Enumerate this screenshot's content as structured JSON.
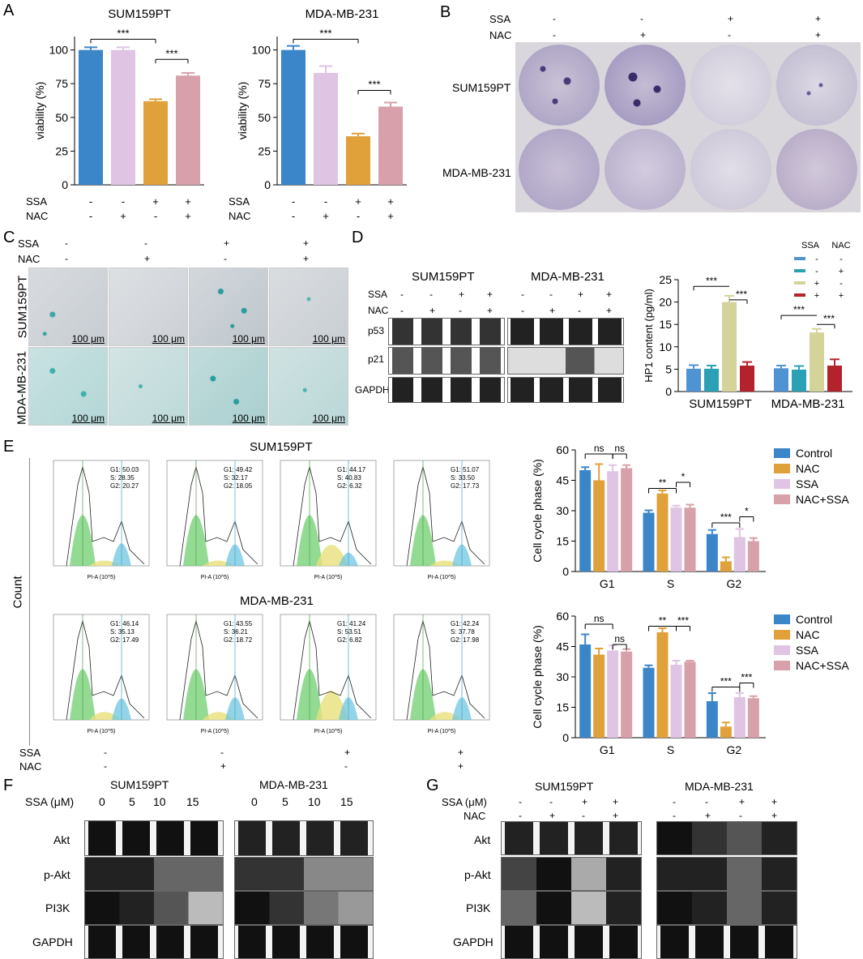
{
  "panels": {
    "A": "A",
    "B": "B",
    "C": "C",
    "D": "D",
    "E": "E",
    "F": "F",
    "G": "G"
  },
  "colors": {
    "control": "#3b86c8",
    "nac": "#e0a03a",
    "ssa": "#e0c4e4",
    "nac_ssa": "#d8a0aa",
    "d_blue": "#4f93d3",
    "d_teal": "#2aa1b5",
    "d_olive": "#d4d49a",
    "d_red": "#b4232c"
  },
  "panelA": {
    "sign_labels": {
      "ssa": "SSA",
      "nac": "NAC"
    },
    "ssa_signs": [
      "-",
      "-",
      "+",
      "+"
    ],
    "nac_signs": [
      "-",
      "+",
      "-",
      "+"
    ],
    "sig": "***"
  },
  "panelB": {
    "ssa_label": "SSA",
    "nac_label": "NAC",
    "ssa_signs": [
      "-",
      "-",
      "+",
      "+"
    ],
    "nac_signs": [
      "-",
      "+",
      "-",
      "+"
    ],
    "rows": [
      "SUM159PT",
      "MDA-MB-231"
    ]
  },
  "panelC": {
    "ssa_label": "SSA",
    "nac_label": "NAC",
    "ssa_signs": [
      "-",
      "-",
      "+",
      "+"
    ],
    "nac_signs": [
      "-",
      "+",
      "-",
      "+"
    ],
    "rows": [
      "SUM159PT",
      "MDA-MB-231"
    ],
    "scale": "100 μm"
  },
  "panelD": {
    "cell_lines": [
      "SUM159PT",
      "MDA-MB-231"
    ],
    "ssa_label": "SSA",
    "nac_label": "NAC",
    "ssa_signs": [
      "-",
      "-",
      "+",
      "+"
    ],
    "nac_signs": [
      "-",
      "+",
      "-",
      "+"
    ],
    "proteins": [
      "p53",
      "p21",
      "GAPDH"
    ],
    "legend_head": [
      "SSA",
      "NAC"
    ],
    "legend_rows": [
      [
        "-",
        "-"
      ],
      [
        "-",
        "+"
      ],
      [
        "+",
        "-"
      ],
      [
        "+",
        "+"
      ]
    ]
  },
  "panelE": {
    "titles": [
      "SUM159PT",
      "MDA-MB-231"
    ],
    "y_axis": "Count",
    "ssa_label": "SSA",
    "nac_label": "NAC",
    "ssa_signs": [
      "-",
      "-",
      "+",
      "+"
    ],
    "nac_signs": [
      "-",
      "+",
      "-",
      "+"
    ],
    "hist_stats": [
      [
        "G1: 50.03",
        "S: 28.35",
        "G2: 20.27"
      ],
      [
        "G1: 49.42",
        "S: 32.17",
        "G2: 18.05"
      ],
      [
        "G1: 44.17",
        "S: 40.83",
        "G2: 6.32"
      ],
      [
        "G1: 51.07",
        "S: 33.50",
        "G2: 17.73"
      ],
      [
        "G1: 46.14",
        "S: 35.13",
        "G2: 17.49"
      ],
      [
        "G1: 43.55",
        "S: 36.21",
        "G2: 18.72"
      ],
      [
        "G1: 41.24",
        "S: 53.51",
        "G2: 6.82"
      ],
      [
        "G1: 42.24",
        "S: 37.78",
        "G2: 17.98"
      ]
    ]
  },
  "panelF": {
    "cell_lines": [
      "SUM159PT",
      "MDA-MB-231"
    ],
    "dose_label": "SSA (μM)",
    "doses": [
      "0",
      "5",
      "10",
      "15"
    ],
    "proteins": [
      "Akt",
      "p-Akt",
      "PI3K",
      "GAPDH"
    ]
  },
  "panelG": {
    "cell_lines": [
      "SUM159PT",
      "MDA-MB-231"
    ],
    "ssa_label": "SSA (μM)",
    "nac_label": "NAC",
    "ssa_signs": [
      "-",
      "-",
      "+",
      "+"
    ],
    "nac_signs": [
      "-",
      "+",
      "-",
      "+"
    ],
    "proteins": [
      "Akt",
      "p-Akt",
      "PI3K",
      "GAPDH"
    ]
  },
  "chart_data": [
    {
      "id": "A-SUM159PT",
      "type": "bar",
      "title": "SUM159PT",
      "ylabel": "viability (%)",
      "ylim": [
        0,
        110
      ],
      "yticks": [
        0,
        25,
        50,
        75,
        100
      ],
      "values": [
        100,
        100,
        62,
        81
      ],
      "errors": [
        2,
        2,
        1.5,
        2
      ],
      "colors": [
        "#3b86c8",
        "#e0c4e4",
        "#e0a03a",
        "#d8a0aa"
      ]
    },
    {
      "id": "A-MDA-MB-231",
      "type": "bar",
      "title": "MDA-MB-231",
      "ylabel": "viability (%)",
      "ylim": [
        0,
        110
      ],
      "yticks": [
        0,
        25,
        50,
        75,
        100
      ],
      "values": [
        100,
        83,
        36,
        58
      ],
      "errors": [
        3,
        5,
        2,
        3
      ],
      "colors": [
        "#3b86c8",
        "#e0c4e4",
        "#e0a03a",
        "#d8a0aa"
      ]
    },
    {
      "id": "D-HP1",
      "type": "bar",
      "ylabel": "HP1 content (pg/ml)",
      "ylim": [
        0,
        25
      ],
      "yticks": [
        0,
        5,
        10,
        15,
        20,
        25
      ],
      "categories": [
        "SUM159PT",
        "MDA-MB-231"
      ],
      "series": [
        {
          "values": [
            5.1,
            5.2
          ],
          "errors": [
            0.8,
            0.6
          ],
          "color": "#4f93d3"
        },
        {
          "values": [
            5.1,
            4.9
          ],
          "errors": [
            0.7,
            0.8
          ],
          "color": "#2aa1b5"
        },
        {
          "values": [
            20,
            13.2
          ],
          "errors": [
            1.4,
            0.8
          ],
          "color": "#d4d49a"
        },
        {
          "values": [
            5.8,
            5.8
          ],
          "errors": [
            0.8,
            1.4
          ],
          "color": "#b4232c"
        }
      ]
    },
    {
      "id": "E-SUM159PT",
      "type": "bar",
      "ylabel": "Cell cycle phase (%)",
      "ylim": [
        0,
        60
      ],
      "yticks": [
        0,
        15,
        30,
        45,
        60
      ],
      "categories": [
        "G1",
        "S",
        "G2"
      ],
      "series": [
        {
          "name": "Control",
          "values": [
            50,
            29,
            18.5
          ],
          "errors": [
            1.5,
            1.2,
            2
          ],
          "color": "#3b86c8"
        },
        {
          "name": "NAC",
          "values": [
            45,
            38.5,
            5
          ],
          "errors": [
            8,
            1.5,
            2
          ],
          "color": "#e0a03a"
        },
        {
          "name": "SSA",
          "values": [
            49.5,
            31.5,
            17
          ],
          "errors": [
            3,
            1,
            4
          ],
          "color": "#e0c4e4"
        },
        {
          "name": "NAC+SSA",
          "values": [
            51,
            31.5,
            15
          ],
          "errors": [
            1.5,
            1.5,
            1.5
          ],
          "color": "#d8a0aa"
        }
      ]
    },
    {
      "id": "E-MDA-MB-231",
      "type": "bar",
      "ylabel": "Cell cycle phase (%)",
      "ylim": [
        0,
        60
      ],
      "yticks": [
        0,
        15,
        30,
        45,
        60
      ],
      "categories": [
        "G1",
        "S",
        "G2"
      ],
      "series": [
        {
          "name": "Control",
          "values": [
            46,
            34.5,
            18
          ],
          "errors": [
            5,
            1.2,
            4
          ],
          "color": "#3b86c8"
        },
        {
          "name": "NAC",
          "values": [
            41,
            52,
            5.5
          ],
          "errors": [
            3,
            2,
            2
          ],
          "color": "#e0a03a"
        },
        {
          "name": "SSA",
          "values": [
            43,
            36,
            20
          ],
          "errors": [
            2.5,
            2,
            2
          ],
          "color": "#e0c4e4"
        },
        {
          "name": "NAC+SSA",
          "values": [
            42.5,
            37.5,
            19.5
          ],
          "errors": [
            1.2,
            0.5,
            1
          ],
          "color": "#d8a0aa"
        }
      ]
    }
  ]
}
